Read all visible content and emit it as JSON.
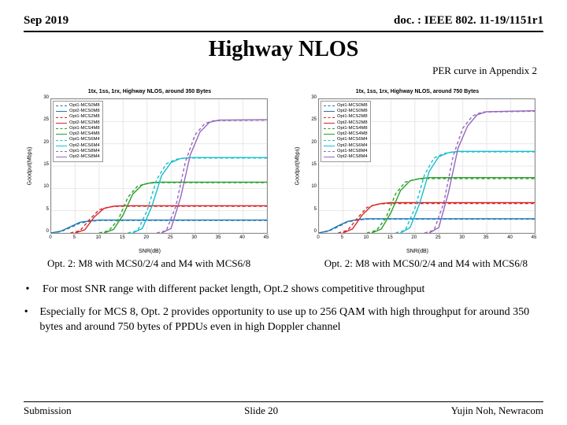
{
  "header": {
    "date": "Sep 2019",
    "doc": "doc. : IEEE 802. 11-19/1151r1"
  },
  "title": "Highway NLOS",
  "subtitle_right": "PER curve in Appendix 2",
  "chart_left": {
    "title": "1tx, 1ss, 1rx, Highway NLOS, around 350 Bytes",
    "ylabel": "Goodput(Mbps)",
    "xlabel": "SNR(dB)",
    "ylim": [
      0,
      30
    ],
    "ytick_step": 5,
    "xlim": [
      0,
      45
    ],
    "xtick_step": 5,
    "grid_color": "#e8e8e8",
    "background_color": "#ffffff",
    "legend_position": "top-left",
    "caption": "Opt. 2: M8 with MCS0/2/4 and M4 with MCS6/8",
    "series": [
      {
        "label": "Opt1-MCS0M8",
        "color": "#1f77b4",
        "dash": "dashed",
        "points": [
          [
            0,
            0
          ],
          [
            2,
            0.3
          ],
          [
            4,
            1.2
          ],
          [
            6,
            2.2
          ],
          [
            8,
            2.6
          ],
          [
            10,
            2.8
          ],
          [
            45,
            2.8
          ]
        ]
      },
      {
        "label": "Opt2-MCS0M8",
        "color": "#1f77b4",
        "dash": "solid",
        "points": [
          [
            0,
            0
          ],
          [
            2,
            0.4
          ],
          [
            4,
            1.4
          ],
          [
            6,
            2.4
          ],
          [
            8,
            2.7
          ],
          [
            10,
            2.9
          ],
          [
            45,
            2.9
          ]
        ]
      },
      {
        "label": "Opt1-MCS2M8",
        "color": "#d62728",
        "dash": "dashed",
        "points": [
          [
            4,
            0
          ],
          [
            6,
            0.5
          ],
          [
            8,
            3.0
          ],
          [
            10,
            5.2
          ],
          [
            12,
            5.8
          ],
          [
            14,
            6.0
          ],
          [
            45,
            6.0
          ]
        ]
      },
      {
        "label": "Opt2-MCS2M8",
        "color": "#d62728",
        "dash": "solid",
        "points": [
          [
            5,
            0
          ],
          [
            7,
            0.7
          ],
          [
            9,
            3.6
          ],
          [
            11,
            5.5
          ],
          [
            13,
            6.0
          ],
          [
            15,
            6.1
          ],
          [
            45,
            6.1
          ]
        ]
      },
      {
        "label": "Opt1-MCS4M8",
        "color": "#2ca02c",
        "dash": "dashed",
        "points": [
          [
            10,
            0
          ],
          [
            12,
            0.5
          ],
          [
            14,
            3.0
          ],
          [
            16,
            8.0
          ],
          [
            18,
            10.5
          ],
          [
            20,
            11.1
          ],
          [
            22,
            11.3
          ],
          [
            45,
            11.3
          ]
        ]
      },
      {
        "label": "Opt2-MCS4M8",
        "color": "#2ca02c",
        "dash": "solid",
        "points": [
          [
            11,
            0
          ],
          [
            13,
            0.8
          ],
          [
            15,
            4.0
          ],
          [
            17,
            8.7
          ],
          [
            19,
            10.8
          ],
          [
            21,
            11.3
          ],
          [
            23,
            11.4
          ],
          [
            45,
            11.4
          ]
        ]
      },
      {
        "label": "Opt1-MCS6M4",
        "color": "#17becf",
        "dash": "dashed",
        "points": [
          [
            16,
            0
          ],
          [
            18,
            0.5
          ],
          [
            20,
            5.0
          ],
          [
            22,
            12.0
          ],
          [
            24,
            15.5
          ],
          [
            26,
            16.5
          ],
          [
            28,
            16.8
          ],
          [
            45,
            16.8
          ]
        ]
      },
      {
        "label": "Opt2-MCS6M4",
        "color": "#17becf",
        "dash": "solid",
        "points": [
          [
            17,
            0
          ],
          [
            19,
            1.0
          ],
          [
            21,
            6.0
          ],
          [
            23,
            12.8
          ],
          [
            25,
            15.8
          ],
          [
            27,
            16.7
          ],
          [
            29,
            16.9
          ],
          [
            45,
            16.9
          ]
        ]
      },
      {
        "label": "Opt1-MCS8M4",
        "color": "#9467bd",
        "dash": "dashed",
        "points": [
          [
            22,
            0
          ],
          [
            24,
            0.5
          ],
          [
            26,
            6.0
          ],
          [
            28,
            16.0
          ],
          [
            30,
            22.0
          ],
          [
            32,
            24.5
          ],
          [
            34,
            25.2
          ],
          [
            45,
            25.3
          ]
        ]
      },
      {
        "label": "Opt2-MCS8M4",
        "color": "#9467bd",
        "dash": "solid",
        "points": [
          [
            23,
            0
          ],
          [
            25,
            1.0
          ],
          [
            27,
            8.0
          ],
          [
            29,
            17.5
          ],
          [
            31,
            22.6
          ],
          [
            33,
            24.8
          ],
          [
            35,
            25.3
          ],
          [
            45,
            25.4
          ]
        ]
      }
    ]
  },
  "chart_right": {
    "title": "1tx, 1ss, 1rx, Highway NLOS, around 750 Bytes",
    "ylabel": "Goodput(Mbps)",
    "xlabel": "SNR(dB)",
    "ylim": [
      0,
      30
    ],
    "ytick_step": 5,
    "xlim": [
      0,
      45
    ],
    "xtick_step": 5,
    "grid_color": "#e8e8e8",
    "background_color": "#ffffff",
    "legend_position": "top-left",
    "caption": "Opt. 2: M8 with MCS0/2/4 and M4 with MCS6/8",
    "series": [
      {
        "label": "Opt1-MCS0M8",
        "color": "#1f77b4",
        "dash": "dashed",
        "points": [
          [
            0,
            0
          ],
          [
            2,
            0.4
          ],
          [
            4,
            1.4
          ],
          [
            6,
            2.5
          ],
          [
            8,
            2.9
          ],
          [
            10,
            3.1
          ],
          [
            45,
            3.1
          ]
        ]
      },
      {
        "label": "Opt2-MCS0M8",
        "color": "#1f77b4",
        "dash": "solid",
        "points": [
          [
            0,
            0
          ],
          [
            2,
            0.5
          ],
          [
            4,
            1.6
          ],
          [
            6,
            2.6
          ],
          [
            8,
            3.0
          ],
          [
            10,
            3.2
          ],
          [
            45,
            3.2
          ]
        ]
      },
      {
        "label": "Opt1-MCS2M8",
        "color": "#d62728",
        "dash": "dashed",
        "points": [
          [
            4,
            0
          ],
          [
            6,
            0.6
          ],
          [
            8,
            3.3
          ],
          [
            10,
            5.7
          ],
          [
            12,
            6.4
          ],
          [
            14,
            6.6
          ],
          [
            45,
            6.6
          ]
        ]
      },
      {
        "label": "Opt2-MCS2M8",
        "color": "#d62728",
        "dash": "solid",
        "points": [
          [
            5,
            0
          ],
          [
            7,
            0.9
          ],
          [
            9,
            4.0
          ],
          [
            11,
            6.1
          ],
          [
            13,
            6.6
          ],
          [
            15,
            6.8
          ],
          [
            45,
            6.8
          ]
        ]
      },
      {
        "label": "Opt1-MCS4M8",
        "color": "#2ca02c",
        "dash": "dashed",
        "points": [
          [
            10,
            0
          ],
          [
            12,
            0.6
          ],
          [
            14,
            3.4
          ],
          [
            16,
            8.8
          ],
          [
            18,
            11.4
          ],
          [
            20,
            12.0
          ],
          [
            22,
            12.2
          ],
          [
            45,
            12.2
          ]
        ]
      },
      {
        "label": "Opt2-MCS4M8",
        "color": "#2ca02c",
        "dash": "solid",
        "points": [
          [
            11,
            0
          ],
          [
            13,
            0.9
          ],
          [
            15,
            4.5
          ],
          [
            17,
            9.5
          ],
          [
            19,
            11.7
          ],
          [
            21,
            12.2
          ],
          [
            23,
            12.4
          ],
          [
            45,
            12.4
          ]
        ]
      },
      {
        "label": "Opt1-MCS6M4",
        "color": "#17becf",
        "dash": "dashed",
        "points": [
          [
            16,
            0
          ],
          [
            18,
            0.6
          ],
          [
            20,
            5.5
          ],
          [
            22,
            13.0
          ],
          [
            24,
            16.8
          ],
          [
            26,
            17.8
          ],
          [
            28,
            18.2
          ],
          [
            45,
            18.2
          ]
        ]
      },
      {
        "label": "Opt2-MCS6M4",
        "color": "#17becf",
        "dash": "solid",
        "points": [
          [
            17,
            0
          ],
          [
            19,
            1.2
          ],
          [
            21,
            6.6
          ],
          [
            23,
            13.8
          ],
          [
            25,
            17.1
          ],
          [
            27,
            18.0
          ],
          [
            29,
            18.3
          ],
          [
            45,
            18.3
          ]
        ]
      },
      {
        "label": "Opt1-MCS8M4",
        "color": "#9467bd",
        "dash": "dashed",
        "points": [
          [
            22,
            0
          ],
          [
            24,
            0.6
          ],
          [
            26,
            6.6
          ],
          [
            28,
            17.3
          ],
          [
            30,
            23.5
          ],
          [
            32,
            26.2
          ],
          [
            34,
            27.1
          ],
          [
            45,
            27.3
          ]
        ]
      },
      {
        "label": "Opt2-MCS8M4",
        "color": "#9467bd",
        "dash": "solid",
        "points": [
          [
            23,
            0
          ],
          [
            25,
            1.2
          ],
          [
            27,
            9.0
          ],
          [
            29,
            19.0
          ],
          [
            31,
            24.0
          ],
          [
            33,
            26.5
          ],
          [
            35,
            27.2
          ],
          [
            45,
            27.4
          ]
        ]
      }
    ]
  },
  "bullets": [
    "For most SNR range with different packet length, Opt.2 shows competitive throughput",
    "Especially for MCS 8, Opt. 2 provides opportunity to use up to 256 QAM with high throughput for around 350 bytes and around 750 bytes of PPDUs even in high Doppler channel"
  ],
  "footer": {
    "left": "Submission",
    "center": "Slide 20",
    "right": "Yujin Noh, Newracom"
  }
}
